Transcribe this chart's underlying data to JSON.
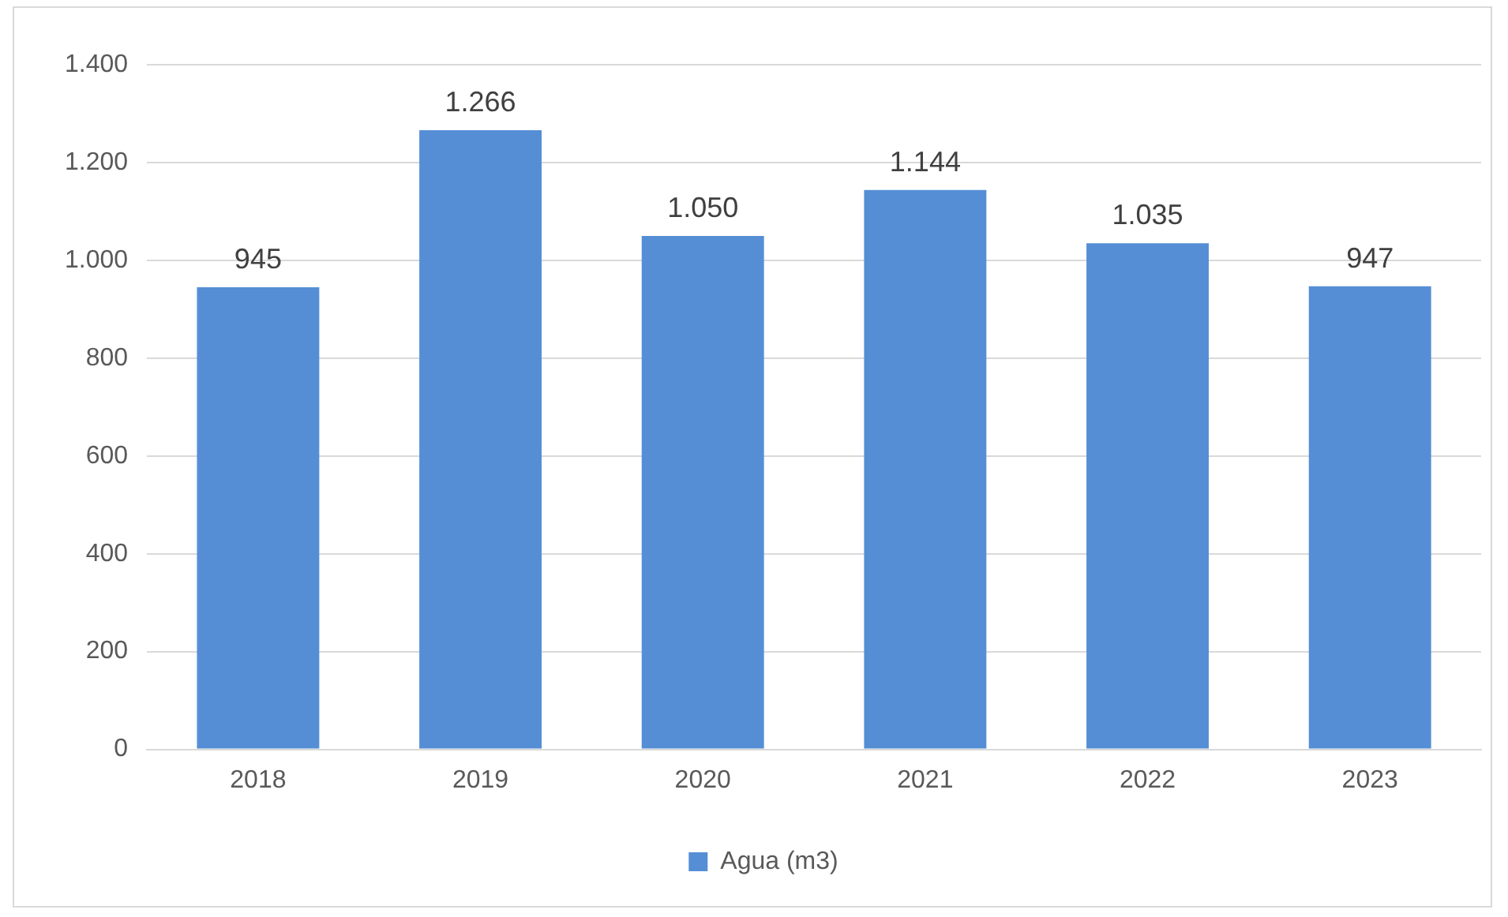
{
  "chart_data": {
    "type": "bar",
    "categories": [
      "2018",
      "2019",
      "2020",
      "2021",
      "2022",
      "2023"
    ],
    "series": [
      {
        "name": "Agua (m3)",
        "color": "#558ed5",
        "values": [
          945,
          1266,
          1050,
          1144,
          1035,
          947
        ],
        "value_labels": [
          "945",
          "1.266",
          "1.050",
          "1.144",
          "1.035",
          "947"
        ]
      }
    ],
    "ylim": [
      0,
      1400
    ],
    "yticks": [
      {
        "value": 0,
        "label": "0"
      },
      {
        "value": 200,
        "label": "200"
      },
      {
        "value": 400,
        "label": "400"
      },
      {
        "value": 600,
        "label": "600"
      },
      {
        "value": 800,
        "label": "800"
      },
      {
        "value": 1000,
        "label": "1.000"
      },
      {
        "value": 1200,
        "label": "1.200"
      },
      {
        "value": 1400,
        "label": "1.400"
      }
    ],
    "grid": "y",
    "legend": "bottom"
  }
}
